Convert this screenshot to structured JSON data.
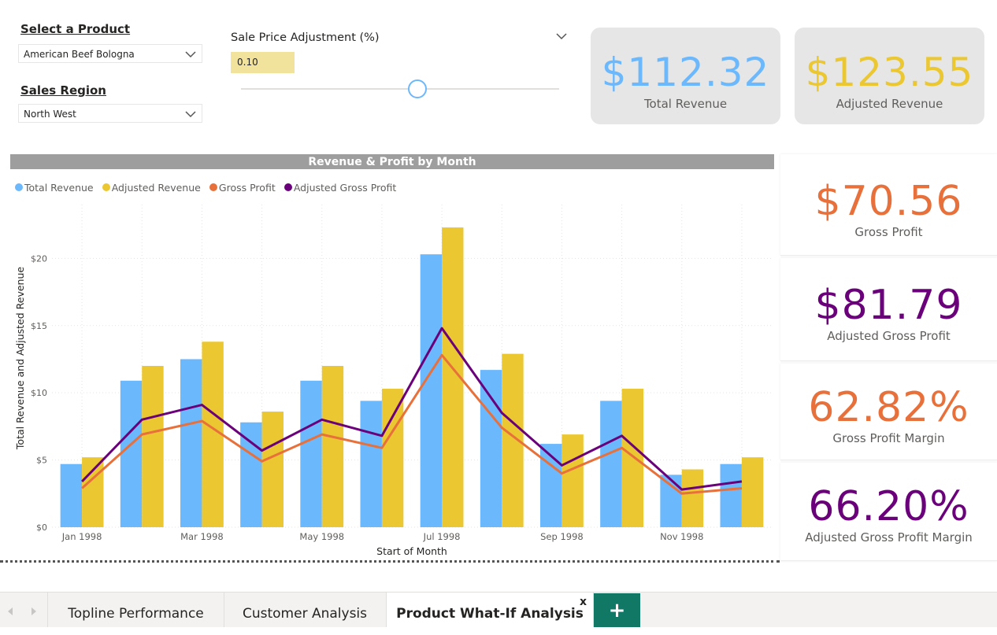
{
  "slicers": {
    "product": {
      "label": "Select a Product",
      "value": "American Beef Bologna"
    },
    "region": {
      "label": "Sales Region",
      "value": "North West"
    },
    "adjustment": {
      "label": "Sale Price Adjustment (%)",
      "value": "0.10"
    }
  },
  "cards": {
    "total_revenue": {
      "value": "$112.32",
      "label": "Total Revenue"
    },
    "adjusted_revenue": {
      "value": "$123.55",
      "label": "Adjusted Revenue"
    },
    "gross_profit": {
      "value": "$70.56",
      "label": "Gross Profit"
    },
    "adjusted_gross_profit": {
      "value": "$81.79",
      "label": "Adjusted Gross Profit"
    },
    "gross_profit_margin": {
      "value": "62.82%",
      "label": "Gross Profit Margin"
    },
    "adjusted_gross_profit_margin": {
      "value": "66.20%",
      "label": "Adjusted Gross Profit Margin"
    }
  },
  "colors": {
    "total_revenue": "#6cb8fc",
    "adjusted_revenue": "#ebc731",
    "gross_profit": "#e8703a",
    "adjusted_gross_profit": "#6b007b",
    "slider_box": "#f1e29c"
  },
  "tabs": [
    {
      "label": "Topline Performance"
    },
    {
      "label": "Customer Analysis"
    },
    {
      "label": "Product What-If Analysis"
    }
  ],
  "tab_close": "x",
  "tab_add": "+",
  "chart_data": {
    "type": "bar",
    "title": "Revenue & Profit by Month",
    "xlabel": "Start of Month",
    "ylabel": "Total Revenue and Adjusted Revenue",
    "ylim": [
      0,
      24
    ],
    "yticks": [
      "$0",
      "$5",
      "$10",
      "$15",
      "$20"
    ],
    "ytick_values": [
      0,
      5,
      10,
      15,
      20
    ],
    "categories": [
      "Jan 1998",
      "Feb 1998",
      "Mar 1998",
      "Apr 1998",
      "May 1998",
      "Jun 1998",
      "Jul 1998",
      "Aug 1998",
      "Sep 1998",
      "Oct 1998",
      "Nov 1998",
      "Dec 1998"
    ],
    "xtick_labels": [
      "Jan 1998",
      "",
      "Mar 1998",
      "",
      "May 1998",
      "",
      "Jul 1998",
      "",
      "Sep 1998",
      "",
      "Nov 1998",
      ""
    ],
    "legend_position": "top-left",
    "series": [
      {
        "name": "Total Revenue",
        "kind": "bar",
        "color": "#6cb8fc",
        "values": [
          4.7,
          10.9,
          12.5,
          7.8,
          10.9,
          9.4,
          20.3,
          11.7,
          6.2,
          9.4,
          3.9,
          4.7
        ]
      },
      {
        "name": "Adjusted Revenue",
        "kind": "bar",
        "color": "#ebc731",
        "values": [
          5.2,
          12.0,
          13.8,
          8.6,
          12.0,
          10.3,
          22.3,
          12.9,
          6.9,
          10.3,
          4.3,
          5.2
        ]
      },
      {
        "name": "Gross Profit",
        "kind": "line",
        "color": "#e8703a",
        "values": [
          2.9,
          6.9,
          7.9,
          4.9,
          6.9,
          5.9,
          12.8,
          7.4,
          4.0,
          5.9,
          2.5,
          2.9
        ]
      },
      {
        "name": "Adjusted Gross Profit",
        "kind": "line",
        "color": "#6b007b",
        "values": [
          3.4,
          8.0,
          9.1,
          5.7,
          8.0,
          6.8,
          14.8,
          8.5,
          4.6,
          6.8,
          2.8,
          3.4
        ]
      }
    ]
  }
}
